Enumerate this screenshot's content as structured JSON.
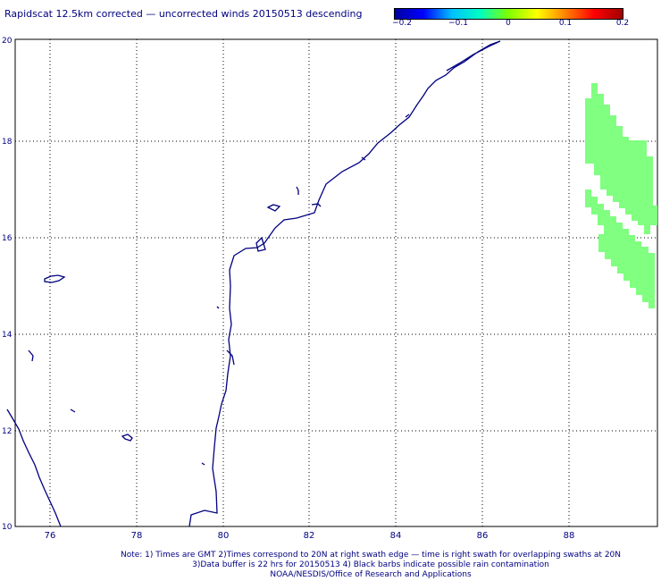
{
  "title": "Rapidscat 12.5km corrected — uncorrected winds 20150513 descending",
  "colorbar": {
    "labels": [
      "−0.2",
      "−0.1",
      "0",
      "0.1",
      "0.2"
    ],
    "stops": [
      "#0000a0",
      "#0000ff",
      "#00c0ff",
      "#00ffc0",
      "#80ff00",
      "#ffff00",
      "#ff8000",
      "#ff0000",
      "#a00000"
    ]
  },
  "map": {
    "lon_ticks": [
      "76",
      "78",
      "80",
      "82",
      "84",
      "86",
      "88"
    ],
    "lat_ticks": [
      "20",
      "18",
      "16",
      "14",
      "12",
      "10"
    ],
    "coast_color": "#000080",
    "swath_color": "#80ff80"
  },
  "notes": {
    "line1": "Note: 1) Times are GMT 2)Times correspond to 20N at right swath edge — time is right swath for overlapping swaths at 20N",
    "line2": "3)Data buffer is 22 hrs for 20150513 4) Black barbs indicate possible rain contamination",
    "line3": "NOAA/NESDIS/Office of Research and Applications"
  }
}
